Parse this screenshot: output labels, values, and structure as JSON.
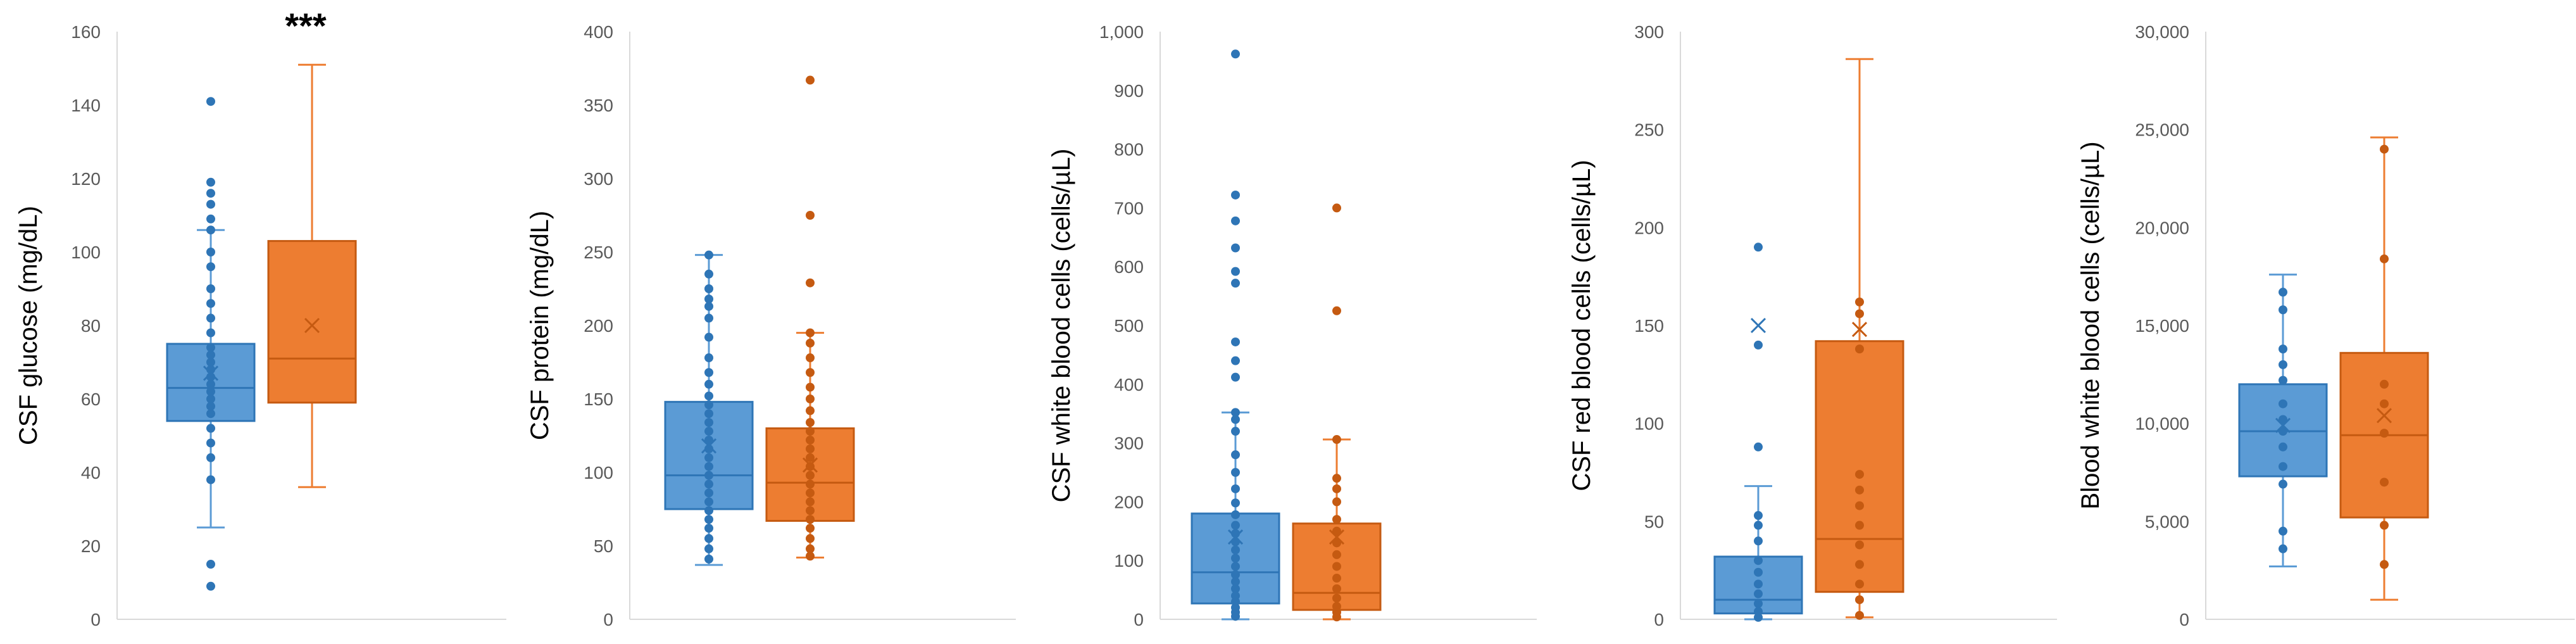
{
  "colors": {
    "series1": "#5b9bd5",
    "series1_dark": "#2e75b6",
    "series2": "#ed7d31",
    "series2_dark": "#c55a11",
    "axis": "#d9d9d9",
    "tick": "#595959"
  },
  "chart_data": [
    {
      "type": "box",
      "ylabel": "CSF glucose (mg/dL)",
      "ylim": [
        0,
        160
      ],
      "yticks": [
        "0",
        "20",
        "40",
        "60",
        "80",
        "100",
        "120",
        "140",
        "160"
      ],
      "annotation": "***",
      "series": [
        {
          "min": 25,
          "q1": 54,
          "median": 63,
          "q3": 75,
          "max": 106,
          "mean": 67,
          "points": [
            9,
            15,
            38,
            44,
            48,
            52,
            56,
            58,
            60,
            62,
            64,
            66,
            68,
            70,
            72,
            74,
            78,
            82,
            86,
            90,
            96,
            100,
            106,
            109,
            113,
            116,
            119,
            141
          ]
        },
        {
          "min": 36,
          "q1": 59,
          "median": 71,
          "q3": 103,
          "max": 151,
          "mean": 80,
          "points": []
        }
      ]
    },
    {
      "type": "box",
      "ylabel": "CSF protein (mg/dL)",
      "ylim": [
        0,
        400
      ],
      "yticks": [
        "0",
        "50",
        "100",
        "150",
        "200",
        "250",
        "300",
        "350",
        "400"
      ],
      "series": [
        {
          "min": 37,
          "q1": 75,
          "median": 98,
          "q3": 148,
          "max": 248,
          "mean": 118,
          "points": [
            41,
            48,
            55,
            62,
            68,
            74,
            80,
            86,
            92,
            98,
            104,
            110,
            116,
            122,
            128,
            134,
            140,
            146,
            152,
            160,
            168,
            178,
            192,
            205,
            213,
            218,
            225,
            235,
            248
          ]
        },
        {
          "min": 42,
          "q1": 67,
          "median": 93,
          "q3": 130,
          "max": 195,
          "mean": 105,
          "points": [
            43,
            48,
            55,
            62,
            68,
            74,
            80,
            86,
            92,
            98,
            104,
            110,
            116,
            122,
            128,
            134,
            142,
            150,
            158,
            168,
            178,
            188,
            195,
            229,
            275,
            367
          ]
        }
      ]
    },
    {
      "type": "box",
      "ylabel": "CSF white blood cells (cells/µL)",
      "ylim": [
        0,
        1000
      ],
      "yticks": [
        "0",
        "100",
        "200",
        "300",
        "400",
        "500",
        "600",
        "700",
        "800",
        "900",
        "1,000"
      ],
      "series": [
        {
          "min": 0,
          "q1": 27,
          "median": 80,
          "q3": 180,
          "max": 352,
          "mean": 140,
          "points": [
            5,
            12,
            20,
            30,
            40,
            52,
            64,
            76,
            90,
            104,
            118,
            132,
            146,
            160,
            178,
            198,
            222,
            250,
            280,
            320,
            340,
            352,
            412,
            440,
            472,
            572,
            592,
            632,
            678,
            722,
            962
          ]
        },
        {
          "min": 0,
          "q1": 16,
          "median": 45,
          "q3": 163,
          "max": 306,
          "mean": 140,
          "points": [
            4,
            12,
            22,
            36,
            52,
            70,
            90,
            110,
            130,
            150,
            170,
            200,
            222,
            240,
            306,
            525,
            700
          ]
        }
      ]
    },
    {
      "type": "box",
      "ylabel": "CSF red blood cells (cells/µL)",
      "ylim": [
        0,
        300
      ],
      "yticks": [
        "0",
        "50",
        "100",
        "150",
        "200",
        "250",
        "300"
      ],
      "series": [
        {
          "min": 0,
          "q1": 3,
          "median": 10,
          "q3": 32,
          "max": 68,
          "mean": 150,
          "points": [
            1,
            4,
            8,
            13,
            18,
            24,
            30,
            40,
            48,
            53,
            88,
            140,
            190
          ]
        },
        {
          "min": 1,
          "q1": 14,
          "median": 41,
          "q3": 142,
          "max": 286,
          "mean": 148,
          "points": [
            2,
            10,
            18,
            28,
            38,
            48,
            58,
            66,
            74,
            138,
            156,
            162
          ]
        }
      ]
    },
    {
      "type": "box",
      "ylabel": "Blood white blood cells (cells/µL)",
      "ylim": [
        0,
        30000
      ],
      "yticks": [
        "0",
        "5,000",
        "10,000",
        "15,000",
        "20,000",
        "25,000",
        "30,000"
      ],
      "series": [
        {
          "min": 2700,
          "q1": 7300,
          "median": 9600,
          "q3": 12000,
          "max": 17600,
          "mean": 9900,
          "points": [
            3600,
            4500,
            6900,
            7800,
            8800,
            9600,
            10200,
            11000,
            12200,
            13000,
            13800,
            15800,
            16700
          ]
        },
        {
          "min": 1000,
          "q1": 5200,
          "median": 9400,
          "q3": 13600,
          "max": 24600,
          "mean": 10400,
          "points": [
            2800,
            4800,
            7000,
            9500,
            11000,
            12000,
            18400,
            24000
          ]
        }
      ]
    }
  ]
}
